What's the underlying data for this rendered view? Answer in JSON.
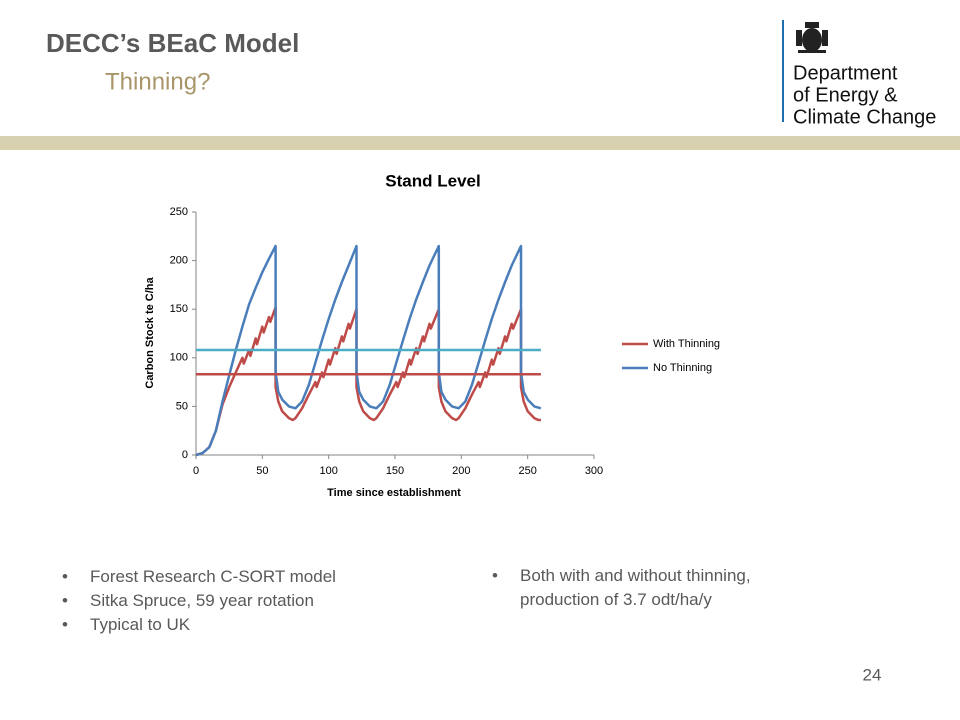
{
  "header": {
    "title": "DECC’s BEaC Model",
    "subtitle": "Thinning?"
  },
  "logo": {
    "lines": [
      "Department",
      "of Energy &",
      "Climate Change"
    ]
  },
  "left_bullets": [
    "Forest Research C-SORT model",
    "Sitka Spruce, 59 year rotation",
    "Typical to UK"
  ],
  "right_bullets": [
    {
      "lines": [
        "Both with and without thinning,",
        "production of 3.7 odt/ha/y"
      ]
    }
  ],
  "page_number": "24",
  "chart_data": {
    "type": "line",
    "title": "Stand Level",
    "x_label": "Time since establishment",
    "y_label": "Carbon Stock te C/ha",
    "xlim": [
      0,
      300
    ],
    "xticks": [
      0,
      50,
      100,
      150,
      200,
      250,
      300
    ],
    "ylim": [
      0,
      250
    ],
    "yticks": [
      0,
      50,
      100,
      150,
      200,
      250
    ],
    "grid": false,
    "legend": "right",
    "series": [
      {
        "name": "With Thinning",
        "color": "#be4b48",
        "x": [
          0,
          5,
          10,
          15,
          20,
          25,
          30,
          35,
          36,
          40,
          41,
          45,
          46,
          50,
          51,
          55,
          56,
          60,
          60,
          62,
          65,
          70,
          73,
          75,
          80,
          85,
          90,
          91,
          95,
          96,
          100,
          101,
          105,
          106,
          110,
          111,
          115,
          116,
          121,
          121,
          123,
          126,
          131,
          134,
          136,
          141,
          146,
          151,
          152,
          156,
          157,
          161,
          162,
          166,
          167,
          171,
          172,
          176,
          177,
          183,
          183,
          185,
          188,
          193,
          196,
          198,
          203,
          208,
          213,
          214,
          218,
          219,
          223,
          224,
          228,
          229,
          233,
          234,
          238,
          239,
          245,
          245,
          247,
          250,
          255,
          258,
          260
        ],
        "values": [
          0,
          2,
          8,
          25,
          52,
          70,
          85,
          100,
          94,
          108,
          102,
          120,
          114,
          132,
          126,
          142,
          137,
          152,
          70,
          55,
          45,
          38,
          36,
          38,
          48,
          62,
          75,
          70,
          85,
          80,
          98,
          93,
          110,
          104,
          122,
          117,
          135,
          130,
          150,
          70,
          55,
          45,
          38,
          36,
          38,
          48,
          62,
          75,
          70,
          85,
          80,
          98,
          93,
          110,
          104,
          122,
          117,
          135,
          130,
          150,
          70,
          55,
          45,
          38,
          36,
          38,
          48,
          62,
          75,
          70,
          85,
          80,
          98,
          93,
          110,
          104,
          122,
          117,
          135,
          130,
          150,
          70,
          55,
          45,
          38,
          36,
          36
        ]
      },
      {
        "name": "No Thinning",
        "color": "#4a7ebb",
        "x": [
          0,
          5,
          10,
          15,
          20,
          25,
          30,
          35,
          40,
          45,
          50,
          55,
          60,
          60,
          62,
          65,
          70,
          75,
          80,
          85,
          90,
          95,
          100,
          105,
          110,
          115,
          121,
          121,
          123,
          126,
          131,
          136,
          141,
          146,
          151,
          156,
          161,
          166,
          171,
          176,
          183,
          183,
          185,
          188,
          193,
          198,
          203,
          208,
          213,
          218,
          223,
          228,
          233,
          238,
          245,
          245,
          247,
          250,
          255,
          260
        ],
        "values": [
          0,
          2,
          8,
          25,
          55,
          82,
          108,
          132,
          155,
          172,
          188,
          202,
          215,
          85,
          65,
          57,
          50,
          48,
          55,
          72,
          95,
          118,
          140,
          160,
          178,
          195,
          215,
          85,
          65,
          57,
          50,
          48,
          55,
          72,
          95,
          118,
          140,
          160,
          178,
          195,
          215,
          85,
          65,
          57,
          50,
          48,
          55,
          72,
          95,
          118,
          140,
          160,
          178,
          195,
          215,
          85,
          65,
          57,
          50,
          48
        ]
      },
      {
        "color": "#be4b48",
        "x": [
          0,
          260
        ],
        "values": [
          83,
          83
        ]
      },
      {
        "color": "#4bacc6",
        "x": [
          0,
          260
        ],
        "values": [
          108,
          108
        ]
      }
    ]
  }
}
